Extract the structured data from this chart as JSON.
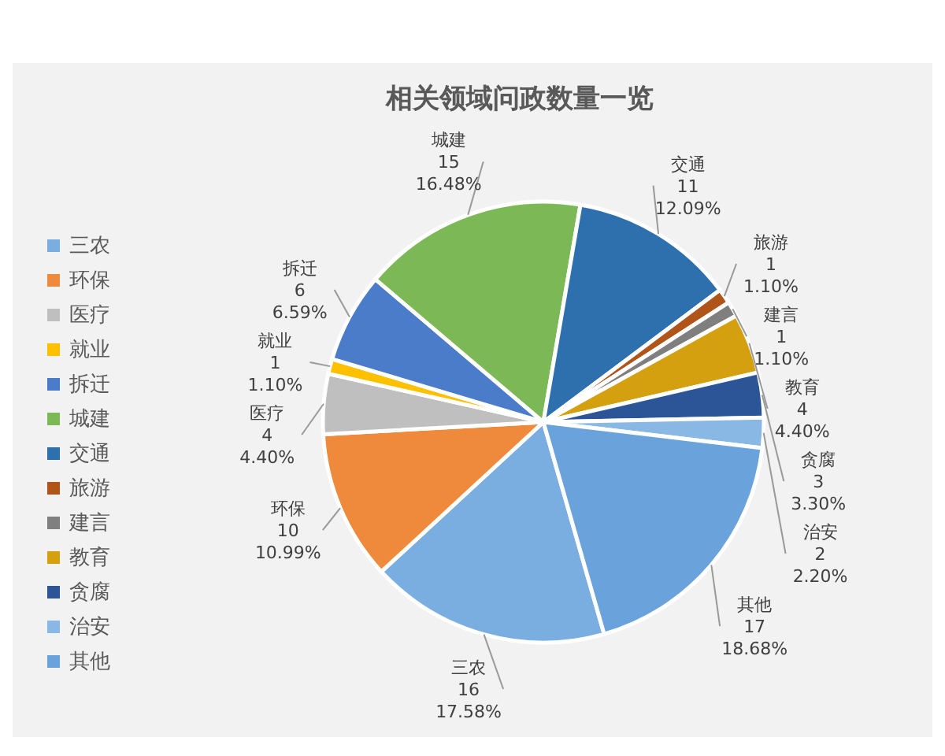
{
  "chart_data": {
    "type": "pie",
    "title": "相关领域问政数量一览",
    "categories": [
      "三农",
      "环保",
      "医疗",
      "就业",
      "拆迁",
      "城建",
      "交通",
      "旅游",
      "建言",
      "教育",
      "贪腐",
      "治安",
      "其他"
    ],
    "values": [
      17.58,
      10.99,
      4.4,
      1.1,
      6.59,
      16.48,
      12.09,
      1.1,
      1.1,
      4.4,
      3.3,
      2.2,
      18.68
    ],
    "colors": [
      "#7aaee0",
      "#ef8a3c",
      "#bfbfbf",
      "#ffc000",
      "#4a7cc9",
      "#7cb956",
      "#2e6fad",
      "#b0541a",
      "#7f7f7f",
      "#d4a010",
      "#2b5597",
      "#8ab8e4",
      "#6aa2dc"
    ],
    "value_labels": [
      "16\n17.58%",
      "10\n10.99%",
      "4\n4.40%",
      "1\n1.10%",
      "6\n6.59%",
      "15\n16.48%",
      "11\n12.09%",
      "1\n1.10%",
      "1\n1.10%",
      "4\n4.40%",
      "3\n3.30%",
      "2\n2.20%",
      "17\n18.68%"
    ],
    "legend": "left"
  }
}
